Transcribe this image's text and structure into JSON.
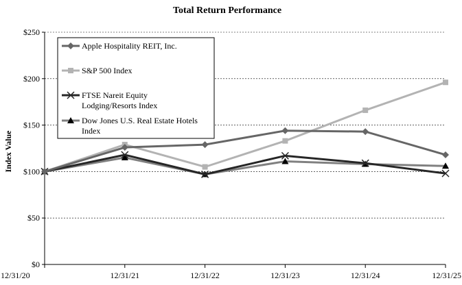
{
  "chart_data": {
    "type": "line",
    "title": "Total Return Performance",
    "ylabel": "Index Value",
    "xlabel": "",
    "categories": [
      "12/31/20",
      "12/31/21",
      "12/31/22",
      "12/31/23",
      "12/31/24",
      "12/31/25"
    ],
    "y_ticks": [
      "$0",
      "$50",
      "$100",
      "$150",
      "$200",
      "$250"
    ],
    "ylim": [
      0,
      250
    ],
    "grid": "horizontal dashed",
    "legend_position": "top-left",
    "series": [
      {
        "name": "Apple Hospitality REIT, Inc.",
        "values": [
          100,
          126,
          129,
          144,
          143,
          118
        ],
        "color": "#666666",
        "marker": "diamond"
      },
      {
        "name": "S&P 500 Index",
        "values": [
          100,
          129,
          105,
          133,
          166,
          196
        ],
        "color": "#b3b3b3",
        "marker": "square"
      },
      {
        "name": "FTSE Nareit Equity Lodging/Resorts Index",
        "values": [
          100,
          118,
          97,
          117,
          109,
          98
        ],
        "color": "#262626",
        "marker": "x",
        "legend_lines": [
          "FTSE Nareit Equity",
          "Lodging/Resorts Index"
        ]
      },
      {
        "name": "Dow Jones U.S. Real Estate Hotels Index",
        "values": [
          100,
          115,
          97,
          111,
          108,
          106
        ],
        "color": "#808080",
        "marker": "triangle",
        "legend_lines": [
          "Dow Jones U.S. Real Estate Hotels",
          "Index"
        ]
      }
    ]
  }
}
